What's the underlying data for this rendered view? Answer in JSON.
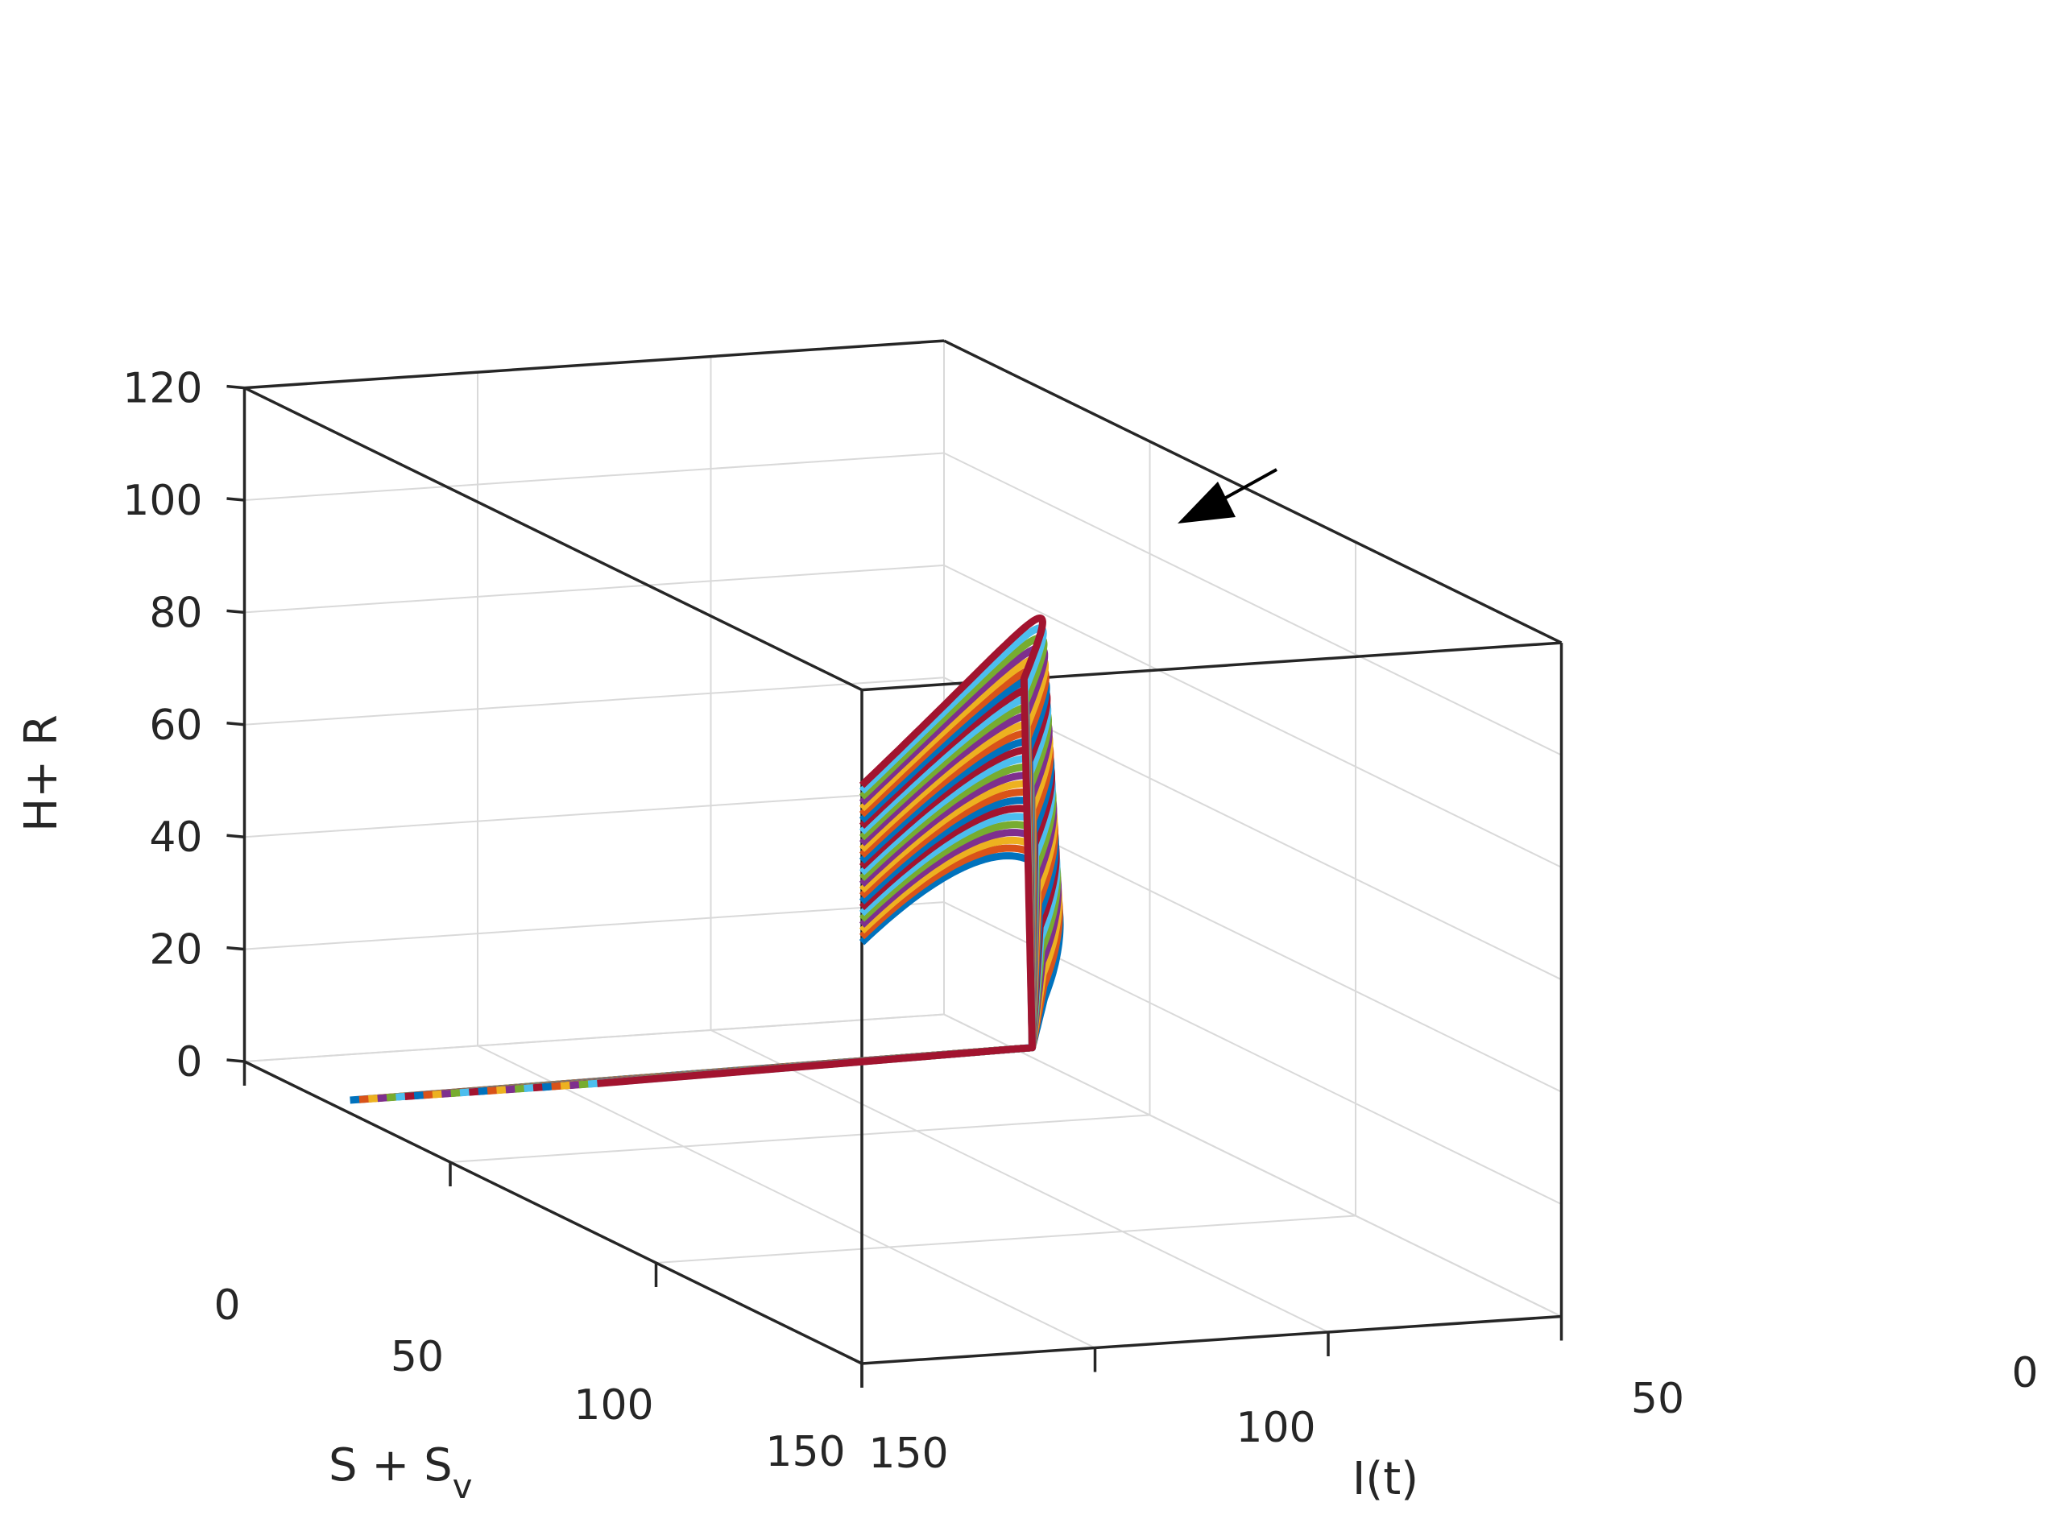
{
  "chart_data": {
    "type": "line",
    "projection": "3d",
    "axes": {
      "x": {
        "label": "S + S",
        "label_sub": "v",
        "ticks": [
          "0",
          "50",
          "100",
          "150"
        ],
        "lim": [
          0,
          150
        ]
      },
      "y": {
        "label": "I(t)",
        "ticks": [
          "150",
          "100",
          "50",
          "0"
        ],
        "lim": [
          0,
          150
        ]
      },
      "z": {
        "label": "H+ R",
        "ticks": [
          "0",
          "20",
          "40",
          "60",
          "80",
          "100",
          "120"
        ],
        "lim": [
          0,
          120
        ]
      }
    },
    "grid": true,
    "box": true,
    "colors": [
      "#0072BD",
      "#D95319",
      "#EDB120",
      "#7E2F8E",
      "#77AC30",
      "#4DBEEE",
      "#A2142F"
    ],
    "series_count": 28,
    "trajectory_start": {
      "s_sv": 20,
      "i_first": 145,
      "i_last": 92,
      "hr": 0
    },
    "trajectory_peak": {
      "s_sv_first": 25,
      "s_sv_last": 20,
      "hr_first": 12,
      "hr_last": 67
    },
    "trajectory_end": {
      "s_sv": 150,
      "i": 150,
      "hr_first": 75,
      "hr_last": 103
    },
    "annotation": "arrow"
  }
}
